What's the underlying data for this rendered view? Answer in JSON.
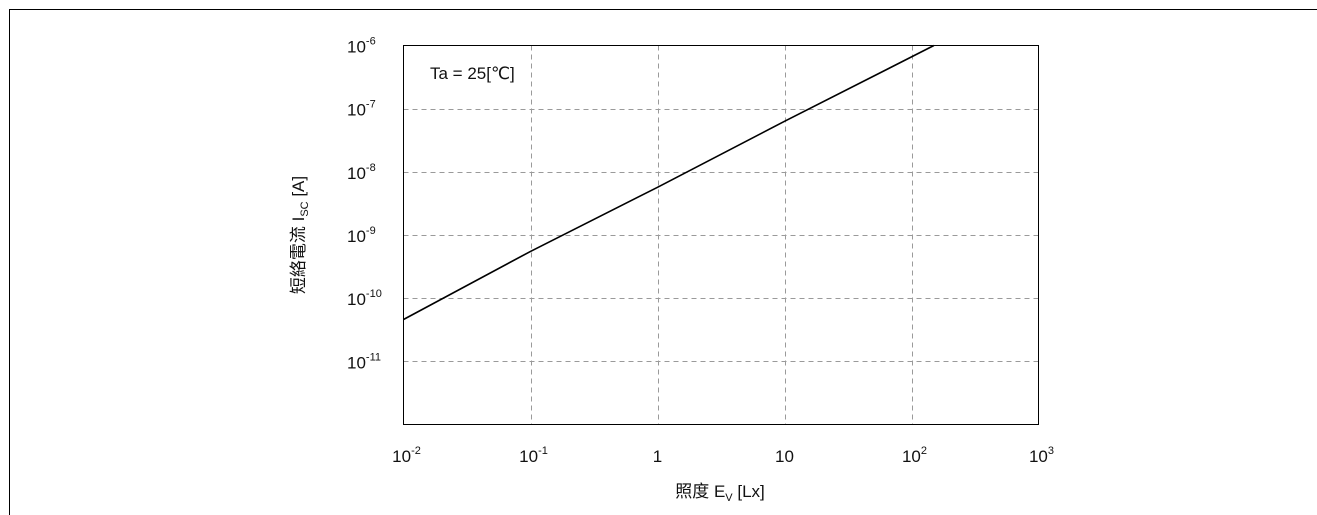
{
  "chart_data": {
    "type": "line",
    "annotation": "Ta = 25[℃]",
    "xlabel": {
      "main": "照度 E",
      "sub": "V",
      "unit": " [Lx]"
    },
    "ylabel": {
      "main": "短絡電流 I",
      "sub": "SC",
      "unit": " [A]"
    },
    "x_scale": "log",
    "y_scale": "log",
    "xlim": [
      0.01,
      1000
    ],
    "ylim": [
      1e-12,
      1e-06
    ],
    "grid": true,
    "x_ticks": [
      {
        "value": 0.01,
        "base": "10",
        "exp": "-2"
      },
      {
        "value": 0.1,
        "base": "10",
        "exp": "-1"
      },
      {
        "value": 1,
        "base": "1",
        "exp": ""
      },
      {
        "value": 10,
        "base": "10",
        "exp": ""
      },
      {
        "value": 100,
        "base": "10",
        "exp": "2"
      },
      {
        "value": 1000,
        "base": "10",
        "exp": "3"
      }
    ],
    "y_ticks": [
      {
        "value": 1e-06,
        "base": "10",
        "exp": "-6"
      },
      {
        "value": 1e-07,
        "base": "10",
        "exp": "-7"
      },
      {
        "value": 1e-08,
        "base": "10",
        "exp": "-8"
      },
      {
        "value": 1e-09,
        "base": "10",
        "exp": "-9"
      },
      {
        "value": 1e-10,
        "base": "10",
        "exp": "-10"
      },
      {
        "value": 1e-11,
        "base": "10",
        "exp": "-11"
      }
    ],
    "series": [
      {
        "x": [
          0.01,
          0.1,
          1,
          10,
          100,
          150
        ],
        "y": [
          4.6e-11,
          5.5e-10,
          5.7e-09,
          6.3e-08,
          6.6e-07,
          1e-06
        ]
      }
    ]
  }
}
